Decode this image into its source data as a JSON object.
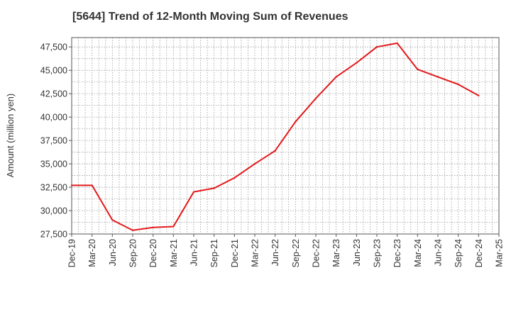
{
  "chart_data": {
    "type": "line",
    "title": "[5644]  Trend of 12-Month Moving Sum of Revenues",
    "xlabel": "",
    "ylabel": "Amount (million yen)",
    "ylim": [
      27500,
      48500
    ],
    "yticks": [
      27500,
      30000,
      32500,
      35000,
      37500,
      40000,
      42500,
      45000,
      47500
    ],
    "ytick_labels": [
      "27,500",
      "30,000",
      "32,500",
      "35,000",
      "37,500",
      "40,000",
      "42,500",
      "45,000",
      "47,500"
    ],
    "xtick_labels": [
      "Dec-19",
      "Mar-20",
      "Jun-20",
      "Sep-20",
      "Dec-20",
      "Mar-21",
      "Jun-21",
      "Sep-21",
      "Dec-21",
      "Mar-22",
      "Jun-22",
      "Sep-22",
      "Dec-22",
      "Mar-23",
      "Jun-23",
      "Sep-23",
      "Dec-23",
      "Mar-24",
      "Jun-24",
      "Sep-24",
      "Dec-24",
      "Mar-25"
    ],
    "grid": true,
    "series": [
      {
        "color": "#e31a1c",
        "x": [
          "Dec-19",
          "Mar-20",
          "Jun-20",
          "Sep-20",
          "Dec-20",
          "Mar-21",
          "Jun-21",
          "Sep-21",
          "Dec-21",
          "Mar-22",
          "Jun-22",
          "Sep-22",
          "Dec-22",
          "Mar-23",
          "Jun-23",
          "Sep-23",
          "Dec-23",
          "Mar-24",
          "Jun-24",
          "Sep-24",
          "Dec-24"
        ],
        "values": [
          32700,
          32700,
          29000,
          27900,
          28200,
          28300,
          32000,
          32400,
          33500,
          35000,
          36400,
          39500,
          42000,
          44300,
          45800,
          47500,
          47900,
          45100,
          44300,
          43500,
          42300
        ]
      }
    ]
  }
}
